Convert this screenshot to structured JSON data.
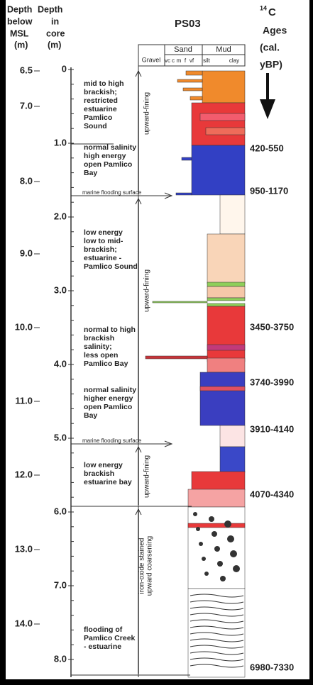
{
  "header": {
    "msl_label": [
      "Depth",
      "below",
      "MSL",
      "(m)"
    ],
    "core_label": [
      "Depth",
      "in",
      "core",
      "(m)"
    ],
    "title": "PS03",
    "ages_label": {
      "superscript": "14",
      "element": "C",
      "lines": [
        "Ages",
        "(cal.",
        "yBP)"
      ]
    }
  },
  "columns": {
    "groups": [
      "Gravel",
      "Sand",
      "Mud"
    ],
    "sub": [
      "vc",
      "c",
      "m",
      "f",
      "vf",
      "silt",
      "clay"
    ]
  },
  "msl_ticks": [
    "6.5",
    "7.0",
    "8.0",
    "9.0",
    "10.0",
    "11.0",
    "12.0",
    "13.0",
    "14.0"
  ],
  "core_ticks": [
    "0",
    "1.0",
    "2.0",
    "3.0",
    "4.0",
    "5.0",
    "6.0",
    "7.0",
    "8.0"
  ],
  "ages": [
    "420-550",
    "950-1170",
    "3450-3750",
    "3740-3990",
    "3910-4140",
    "4070-4340",
    "6980-7330"
  ],
  "descriptions": [
    {
      "lines": [
        "mid to high",
        "brackish;",
        "restricted",
        "estuarine",
        "Pamlico",
        "Sound"
      ]
    },
    {
      "lines": [
        "normal salinity",
        "high energy",
        "open Pamlico",
        "Bay"
      ]
    },
    {
      "lines": [
        "marine flooding surface"
      ]
    },
    {
      "lines": [
        "low energy",
        "low to mid-",
        "brackish;",
        "estuarine -",
        "Pamlico Sound"
      ]
    },
    {
      "lines": [
        "normal to high",
        "brackish",
        "salinity;",
        "less open",
        "Pamlico Bay"
      ]
    },
    {
      "lines": [
        "normal salinity",
        "higher energy",
        "open Pamlico",
        "Bay"
      ]
    },
    {
      "lines": [
        "marine flooding surface"
      ]
    },
    {
      "lines": [
        "low energy",
        "brackish",
        "estuarine bay"
      ]
    },
    {
      "lines": [
        "flooding of",
        "Pamlico Creek",
        "- estuarine"
      ]
    }
  ],
  "trends": [
    {
      "lines": [
        "upward-fining"
      ]
    },
    {
      "lines": [
        "upward-fining"
      ]
    },
    {
      "lines": [
        "upward-fining"
      ]
    },
    {
      "lines": [
        "iron-oxide stained",
        "upward coarsening"
      ]
    }
  ]
}
